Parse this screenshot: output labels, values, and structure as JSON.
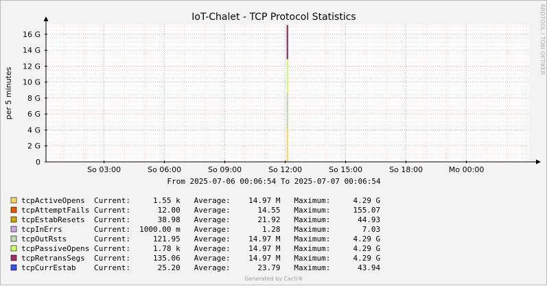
{
  "chart_data": {
    "type": "area",
    "title": "IoT-Chalet - TCP Protocol Statistics",
    "ylabel": "per 5 minutes",
    "watermark": "RRDTOOL / TOBI OETIKER",
    "ylim": [
      0,
      17.2
    ],
    "y_ticks": [
      {
        "value": 0,
        "label": "0"
      },
      {
        "value": 2,
        "label": "2 G"
      },
      {
        "value": 4,
        "label": "4 G"
      },
      {
        "value": 6,
        "label": "6 G"
      },
      {
        "value": 8,
        "label": "8 G"
      },
      {
        "value": 10,
        "label": "10 G"
      },
      {
        "value": 12,
        "label": "12 G"
      },
      {
        "value": 14,
        "label": "14 G"
      },
      {
        "value": 16,
        "label": "16 G"
      }
    ],
    "x_ticks": [
      {
        "hours": 3,
        "label": "So 03:00"
      },
      {
        "hours": 6,
        "label": "So 06:00"
      },
      {
        "hours": 9,
        "label": "So 09:00"
      },
      {
        "hours": 12,
        "label": "So 12:00"
      },
      {
        "hours": 15,
        "label": "So 15:00"
      },
      {
        "hours": 18,
        "label": "So 18:00"
      },
      {
        "hours": 21,
        "label": "Mo 00:00"
      }
    ],
    "x_range_hours": [
      0.115,
      24.115
    ],
    "spike_hour": 12.1,
    "range_text": "From 2025-07-06 00:06:54 To 2025-07-07 00:06:54",
    "stack": [
      {
        "name": "tcpActiveOpens",
        "color": "#FFD660",
        "bottom": 0,
        "top": 4.29
      },
      {
        "name": "tcpOutRsts",
        "color": "#C0D8B0",
        "bottom": 4.29,
        "top": 8.58
      },
      {
        "name": "tcpPassiveOpens",
        "color": "#CCFF66",
        "bottom": 8.58,
        "top": 12.87
      },
      {
        "name": "tcpRetransSegs",
        "color": "#993366",
        "bottom": 12.87,
        "top": 17.16
      }
    ],
    "legend": [
      {
        "color": "#FFD660",
        "name": "tcpActiveOpens",
        "current": "1.55 k",
        "average": "14.97 M",
        "maximum": "4.29 G"
      },
      {
        "color": "#EA5A00",
        "name": "tcpAttemptFails",
        "current": "12.00",
        "average": "14.55",
        "maximum": "155.07"
      },
      {
        "color": "#D0A800",
        "name": "tcpEstabResets",
        "current": "38.98",
        "average": "21.92",
        "maximum": "44.93"
      },
      {
        "color": "#CCA8E0",
        "name": "tcpInErrs",
        "current": "1000.00 m",
        "average": "1.28",
        "maximum": "7.03"
      },
      {
        "color": "#C0D8B0",
        "name": "tcpOutRsts",
        "current": "121.95",
        "average": "14.97 M",
        "maximum": "4.29 G"
      },
      {
        "color": "#CCFF66",
        "name": "tcpPassiveOpens",
        "current": "1.78 k",
        "average": "14.97 M",
        "maximum": "4.29 G"
      },
      {
        "color": "#993366",
        "name": "tcpRetransSegs",
        "current": "135.06",
        "average": "14.97 M",
        "maximum": "4.29 G"
      },
      {
        "color": "#3B4FEF",
        "name": "tcpCurrEstab",
        "current": "25.20",
        "average": "23.79",
        "maximum": "43.94"
      }
    ],
    "labels": {
      "current": "Current:",
      "average": "Average:",
      "maximum": "Maximum:"
    },
    "footer": "Generated by Cacti®",
    "grid": true
  }
}
